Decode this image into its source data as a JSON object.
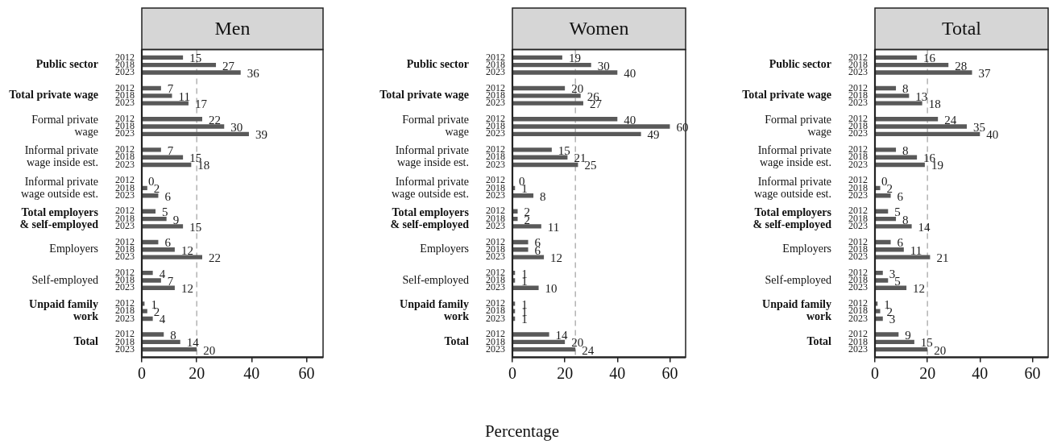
{
  "chart_data": [
    {
      "type": "bar",
      "orientation": "horizontal",
      "title": "Men",
      "categories": [
        "Public sector",
        "Total private wage",
        "Formal private\nwage",
        "Informal private\nwage inside est.",
        "Informal private\nwage outside est.",
        "Total employers\n& self-employed",
        "Employers",
        "Self-employed",
        "Unpaid family\nwork",
        "Total"
      ],
      "series": [
        {
          "name": "2012",
          "color": "#595959",
          "values": [
            15,
            7,
            22,
            7,
            0,
            5,
            6,
            4,
            1,
            8
          ]
        },
        {
          "name": "2018",
          "color": "#595959",
          "values": [
            27,
            11,
            30,
            15,
            2,
            9,
            12,
            7,
            2,
            14
          ]
        },
        {
          "name": "2023",
          "color": "#595959",
          "values": [
            36,
            17,
            39,
            18,
            6,
            15,
            22,
            12,
            4,
            20
          ]
        }
      ],
      "xlim": [
        0,
        66
      ],
      "xticks": [
        0,
        20,
        40,
        60
      ],
      "ref_lines": [
        {
          "axis": "x",
          "value": 20,
          "color": "#a8a8a8",
          "line_style": "dashed"
        }
      ],
      "data_labels": true
    },
    {
      "type": "bar",
      "orientation": "horizontal",
      "title": "Women",
      "xlabel": "Percentage",
      "categories": [
        "Public sector",
        "Total private wage",
        "Formal private\nwage",
        "Informal private\nwage inside est.",
        "Informal private\nwage outside est.",
        "Total employers\n& self-employed",
        "Employers",
        "Self-employed",
        "Unpaid family\nwork",
        "Total"
      ],
      "series": [
        {
          "name": "2012",
          "color": "#595959",
          "values": [
            19,
            20,
            40,
            15,
            0,
            2,
            6,
            1,
            1,
            14
          ]
        },
        {
          "name": "2018",
          "color": "#595959",
          "values": [
            30,
            26,
            60,
            21,
            1,
            2,
            6,
            1,
            1,
            20
          ]
        },
        {
          "name": "2023",
          "color": "#595959",
          "values": [
            40,
            27,
            49,
            25,
            8,
            11,
            12,
            10,
            1,
            24
          ]
        }
      ],
      "xlim": [
        0,
        66
      ],
      "xticks": [
        0,
        20,
        40,
        60
      ],
      "ref_lines": [
        {
          "axis": "x",
          "value": 24,
          "color": "#a8a8a8",
          "line_style": "dashed"
        }
      ],
      "data_labels": true
    },
    {
      "type": "bar",
      "orientation": "horizontal",
      "title": "Total",
      "categories": [
        "Public sector",
        "Total private wage",
        "Formal private\nwage",
        "Informal private\nwage inside est.",
        "Informal private\nwage outside est.",
        "Total employers\n& self-employed",
        "Employers",
        "Self-employed",
        "Unpaid family\nwork",
        "Total"
      ],
      "series": [
        {
          "name": "2012",
          "color": "#595959",
          "values": [
            16,
            8,
            24,
            8,
            0,
            5,
            6,
            3,
            1,
            9
          ]
        },
        {
          "name": "2018",
          "color": "#595959",
          "values": [
            28,
            13,
            35,
            16,
            2,
            8,
            11,
            5,
            2,
            15
          ]
        },
        {
          "name": "2023",
          "color": "#595959",
          "values": [
            37,
            18,
            40,
            19,
            6,
            14,
            21,
            12,
            3,
            20
          ]
        }
      ],
      "xlim": [
        0,
        66
      ],
      "xticks": [
        0,
        20,
        40,
        60
      ],
      "ref_lines": [
        {
          "axis": "x",
          "value": 20,
          "color": "#a8a8a8",
          "line_style": "dashed"
        }
      ],
      "data_labels": true
    }
  ]
}
